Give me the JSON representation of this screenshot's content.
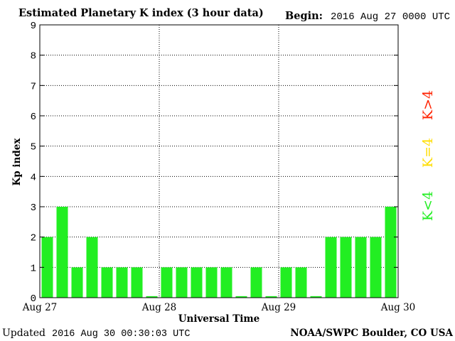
{
  "header": {
    "title": "Estimated Planetary K index (3 hour data)",
    "begin_label": "Begin:",
    "begin_value": "2016 Aug 27 0000 UTC"
  },
  "footer": {
    "updated_label": "Updated",
    "updated_value": "2016 Aug 30 00:30:03 UTC",
    "source": "NOAA/SWPC Boulder, CO USA"
  },
  "legend": {
    "low": "K<4",
    "equal": "K=4",
    "high": "K>4"
  },
  "colors": {
    "low": "#22ee22",
    "equal": "#ffdd00",
    "high": "#ff2200",
    "grid": "#000000",
    "background": "#ffffff"
  },
  "chart_data": {
    "type": "bar",
    "xlabel": "Universal Time",
    "ylabel": "Kp index",
    "ylim": [
      0,
      9
    ],
    "yticks": [
      0,
      1,
      2,
      3,
      4,
      5,
      6,
      7,
      8,
      9
    ],
    "xticks": [
      "Aug 27",
      "Aug 28",
      "Aug 29",
      "Aug 30"
    ],
    "grid": true,
    "interval_hours": 3,
    "values": [
      2,
      3,
      1,
      2,
      1,
      1,
      1,
      0.05,
      1,
      1,
      1,
      1,
      1,
      0.05,
      1,
      0.05,
      1,
      1,
      0.05,
      2,
      2,
      2,
      2,
      3
    ]
  }
}
